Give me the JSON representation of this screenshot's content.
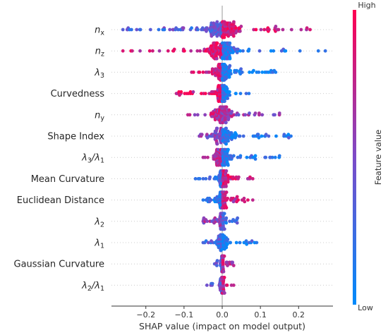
{
  "chart_data": {
    "type": "scatter",
    "subtype": "shap-beeswarm-summary",
    "xlabel": "SHAP value (impact on model output)",
    "xlim": [
      -0.29,
      0.29
    ],
    "x_ticks": [
      {
        "value": -0.2,
        "label": "−0.2"
      },
      {
        "value": -0.1,
        "label": "−0.1"
      },
      {
        "value": 0.0,
        "label": "0.0"
      },
      {
        "value": 0.1,
        "label": "0.1"
      },
      {
        "value": 0.2,
        "label": "0.2"
      }
    ],
    "zero_line": true,
    "colorbar": {
      "title": "Feature value",
      "high_label": "High",
      "low_label": "Low",
      "high_color": "#ff0051",
      "low_color": "#008bfb"
    },
    "features": [
      {
        "label": "n",
        "sub": "x",
        "italic": true,
        "min": -0.26,
        "max": 0.23,
        "dense_neg_color": 0.35,
        "dense_pos_color": 0.85,
        "n": 190
      },
      {
        "label": "n",
        "sub": "z",
        "italic": true,
        "min": -0.26,
        "max": 0.27,
        "dense_neg_color": 0.85,
        "dense_pos_color": 0.2,
        "n": 170
      },
      {
        "label": "λ",
        "sub": "3",
        "italic": true,
        "min": -0.08,
        "max": 0.14,
        "dense_neg_color": 0.8,
        "dense_pos_color": 0.1,
        "n": 130
      },
      {
        "label": "Curvedness",
        "sub": "",
        "italic": false,
        "min": -0.12,
        "max": 0.07,
        "dense_neg_color": 0.85,
        "dense_pos_color": 0.15,
        "n": 110
      },
      {
        "label": "n",
        "sub": "y",
        "italic": true,
        "min": -0.09,
        "max": 0.15,
        "dense_neg_color": 0.75,
        "dense_pos_color": 0.6,
        "n": 120
      },
      {
        "label": "Shape Index",
        "sub": "",
        "italic": false,
        "min": -0.06,
        "max": 0.18,
        "dense_neg_color": 0.55,
        "dense_pos_color": 0.15,
        "n": 120
      },
      {
        "label": "λ",
        "sub": "3",
        "label2": "/λ",
        "sub2": "1",
        "italic": true,
        "min": -0.05,
        "max": 0.15,
        "dense_neg_color": 0.7,
        "dense_pos_color": 0.15,
        "n": 115
      },
      {
        "label": "Mean Curvature",
        "sub": "",
        "italic": false,
        "min": -0.07,
        "max": 0.08,
        "dense_neg_color": 0.2,
        "dense_pos_color": 0.8,
        "n": 90
      },
      {
        "label": "Euclidean Distance",
        "sub": "",
        "italic": false,
        "min": -0.05,
        "max": 0.08,
        "dense_neg_color": 0.15,
        "dense_pos_color": 0.75,
        "n": 100
      },
      {
        "label": "λ",
        "sub": "2",
        "italic": true,
        "min": -0.05,
        "max": 0.04,
        "dense_neg_color": 0.6,
        "dense_pos_color": 0.3,
        "n": 80
      },
      {
        "label": "λ",
        "sub": "1",
        "italic": true,
        "min": -0.05,
        "max": 0.09,
        "dense_neg_color": 0.3,
        "dense_pos_color": 0.15,
        "n": 75
      },
      {
        "label": "Gaussian Curvature",
        "sub": "",
        "italic": false,
        "min": -0.02,
        "max": 0.03,
        "dense_neg_color": 0.35,
        "dense_pos_color": 0.75,
        "n": 60
      },
      {
        "label": "λ",
        "sub": "2",
        "label2": "/λ",
        "sub2": "1",
        "italic": true,
        "min": -0.04,
        "max": 0.03,
        "dense_neg_color": 0.45,
        "dense_pos_color": 0.75,
        "n": 55
      }
    ]
  }
}
